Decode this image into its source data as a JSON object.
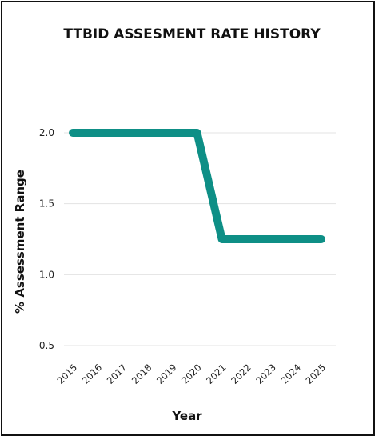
{
  "chart_data": {
    "type": "line",
    "title": "TTBID ASSESMENT RATE HISTORY",
    "xlabel": "Year",
    "ylabel": "% Assessment Range",
    "categories": [
      "2015",
      "2016",
      "2017",
      "2018",
      "2019",
      "2020",
      "2021",
      "2022",
      "2023",
      "2024",
      "2025"
    ],
    "series": [
      {
        "values": [
          2.0,
          2.0,
          2.0,
          2.0,
          2.0,
          2.0,
          1.25,
          1.25,
          1.25,
          1.25,
          1.25
        ]
      }
    ],
    "yticks": [
      "0.5",
      "1.0",
      "1.5",
      "2.0"
    ],
    "ylim": [
      0.5,
      2.0
    ],
    "grid": true,
    "legend": "none",
    "line_color": "#0e8f86"
  }
}
